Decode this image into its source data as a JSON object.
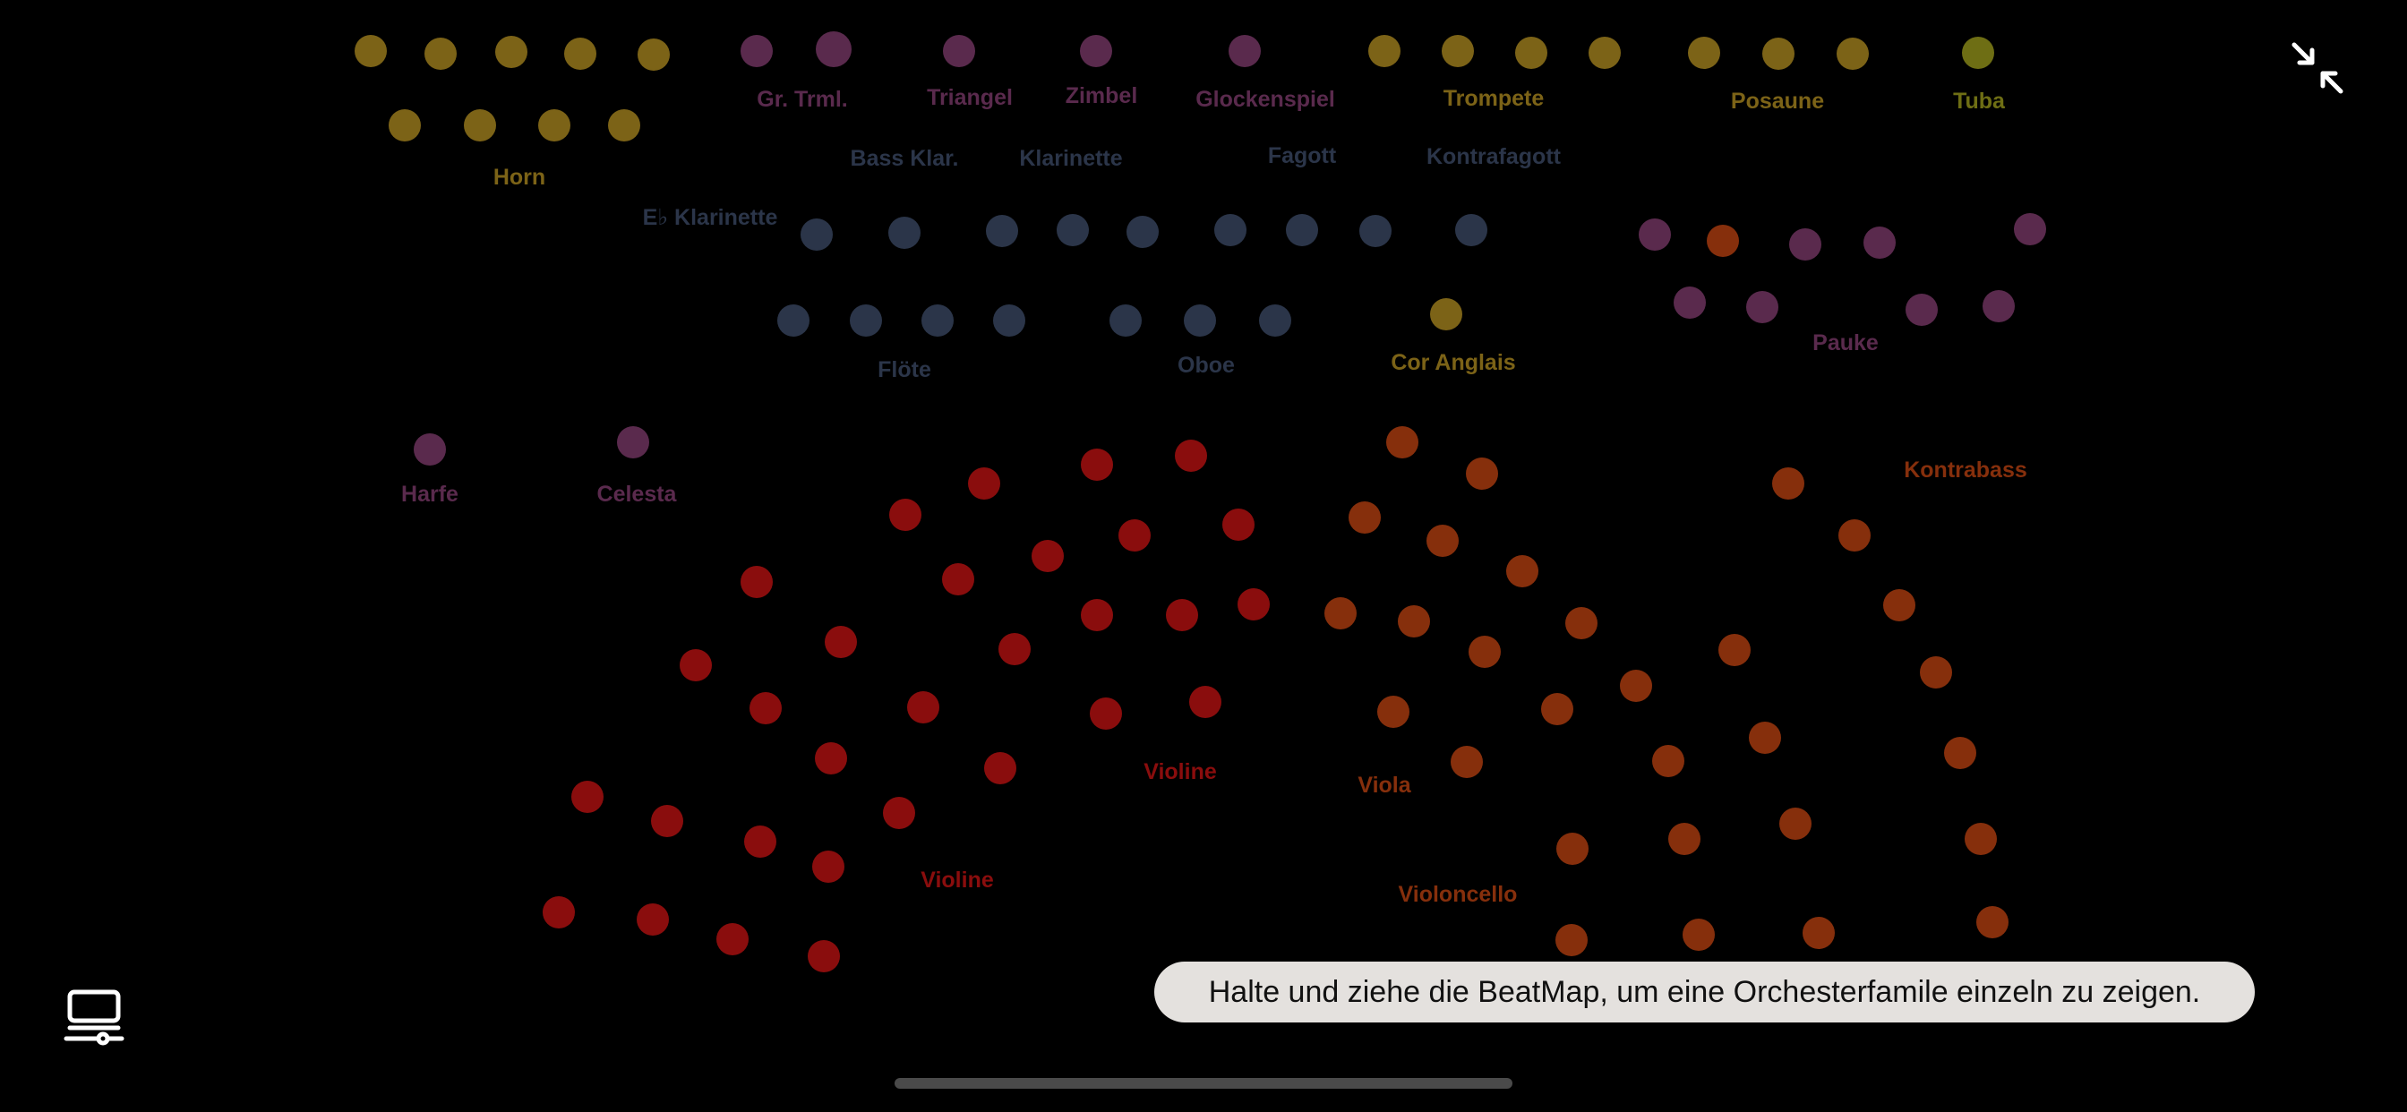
{
  "colors": {
    "brass": "#7c6317",
    "woodwind": "#2b3549",
    "percussion": "#5a2a4d",
    "violin": "#8a0d0d",
    "lowstrings": "#862f0c",
    "tuba": "#6e6e14"
  },
  "labels": {
    "horn": "Horn",
    "gr_trml": "Gr. Trml.",
    "triangel": "Triangel",
    "zimbel": "Zimbel",
    "glockenspiel": "Glockenspiel",
    "trompete": "Trompete",
    "posaune": "Posaune",
    "tuba": "Tuba",
    "bass_klar": "Bass Klar.",
    "klarinette": "Klarinette",
    "fagott": "Fagott",
    "kontrafagott": "Kontrafagott",
    "es_klarinette": "E♭ Klarinette",
    "floete": "Flöte",
    "oboe": "Oboe",
    "cor_anglais": "Cor Anglais",
    "pauke": "Pauke",
    "harfe": "Harfe",
    "celesta": "Celesta",
    "kontrabass": "Kontrabass",
    "violine_2": "Violine",
    "viola": "Viola",
    "violine_1": "Violine",
    "violoncello": "Violoncello"
  },
  "hint": {
    "text": "Halte und ziehe die BeatMap, um eine Orchesterfamile einzeln zu zeigen."
  },
  "controls": {
    "minimize_icon": "collapse-arrows-icon",
    "view_icon": "display-slider-icon"
  }
}
